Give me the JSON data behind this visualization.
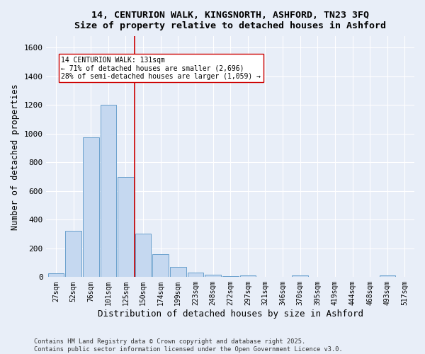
{
  "title_line1": "14, CENTURION WALK, KINGSNORTH, ASHFORD, TN23 3FQ",
  "title_line2": "Size of property relative to detached houses in Ashford",
  "xlabel": "Distribution of detached houses by size in Ashford",
  "ylabel": "Number of detached properties",
  "bar_labels": [
    "27sqm",
    "52sqm",
    "76sqm",
    "101sqm",
    "125sqm",
    "150sqm",
    "174sqm",
    "199sqm",
    "223sqm",
    "248sqm",
    "272sqm",
    "297sqm",
    "321sqm",
    "346sqm",
    "370sqm",
    "395sqm",
    "419sqm",
    "444sqm",
    "468sqm",
    "493sqm",
    "517sqm"
  ],
  "bar_values": [
    25,
    325,
    975,
    1200,
    700,
    305,
    160,
    70,
    30,
    15,
    5,
    10,
    0,
    0,
    10,
    0,
    0,
    0,
    0,
    10,
    0
  ],
  "bar_color": "#c5d8f0",
  "bar_edgecolor": "#6aa0cd",
  "vline_x": 4.5,
  "vline_color": "#cc0000",
  "annotation_text": "14 CENTURION WALK: 131sqm\n← 71% of detached houses are smaller (2,696)\n28% of semi-detached houses are larger (1,059) →",
  "annotation_box_edgecolor": "#cc0000",
  "annotation_box_facecolor": "#ffffff",
  "ylim": [
    0,
    1680
  ],
  "yticks": [
    0,
    200,
    400,
    600,
    800,
    1000,
    1200,
    1400,
    1600
  ],
  "background_color": "#e8eef8",
  "grid_color": "#ffffff",
  "footer_line1": "Contains HM Land Registry data © Crown copyright and database right 2025.",
  "footer_line2": "Contains public sector information licensed under the Open Government Licence v3.0."
}
